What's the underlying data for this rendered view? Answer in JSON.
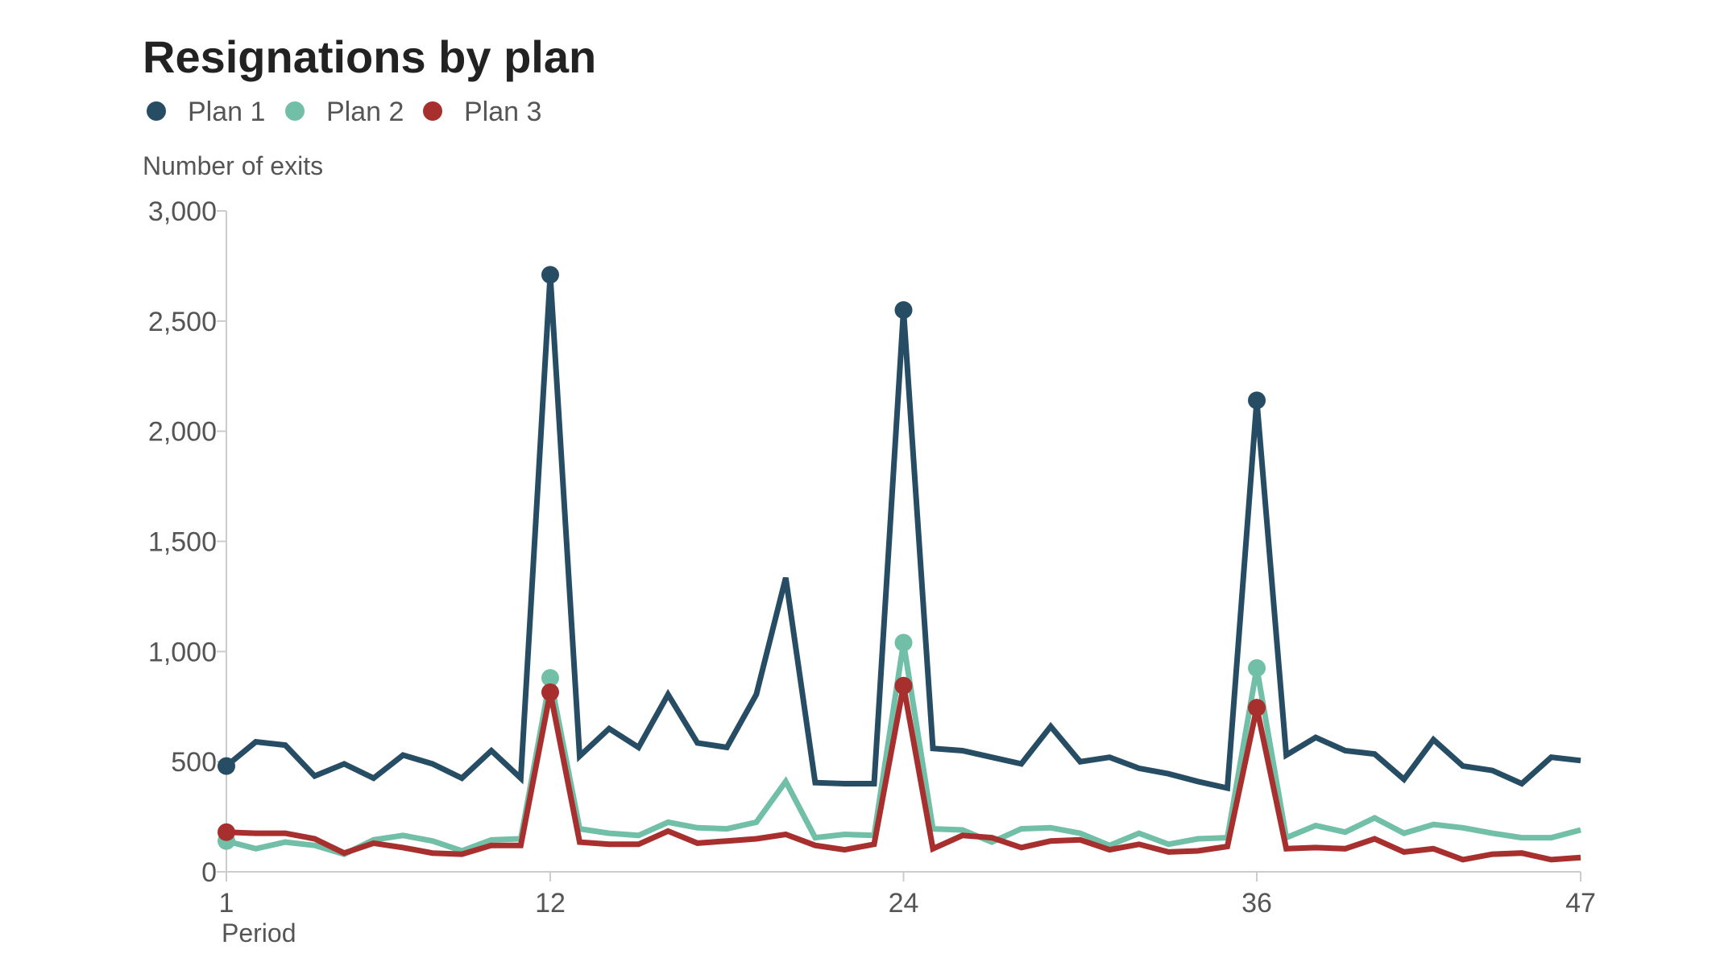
{
  "chart_data": {
    "type": "line",
    "title": "Resignations by plan",
    "ylabel": "Number of exits",
    "xlabel": "Period",
    "x": [
      1,
      2,
      3,
      4,
      5,
      6,
      7,
      8,
      9,
      10,
      11,
      12,
      13,
      14,
      15,
      16,
      17,
      18,
      19,
      20,
      21,
      22,
      23,
      24,
      25,
      26,
      27,
      28,
      29,
      30,
      31,
      32,
      33,
      34,
      35,
      36,
      37,
      38,
      39,
      40,
      41,
      42,
      43,
      44,
      45,
      46,
      47
    ],
    "xticks": [
      1,
      12,
      24,
      36,
      47
    ],
    "xlim": [
      1,
      47
    ],
    "ylim": [
      0,
      3000
    ],
    "yticks": [
      0,
      500,
      1000,
      1500,
      2000,
      2500,
      3000
    ],
    "ytick_labels": [
      "0",
      "500",
      "1,000",
      "1,500",
      "2,000",
      "2,500",
      "3,000"
    ],
    "grid": false,
    "legend_position": "top-left",
    "series": [
      {
        "name": "Plan 1",
        "color": "#264d64",
        "values": [
          480,
          590,
          575,
          435,
          490,
          425,
          530,
          490,
          425,
          550,
          425,
          2710,
          525,
          650,
          565,
          805,
          585,
          565,
          805,
          1335,
          405,
          400,
          400,
          2550,
          560,
          550,
          520,
          490,
          660,
          500,
          520,
          470,
          445,
          410,
          380,
          2140,
          530,
          610,
          550,
          535,
          420,
          600,
          480,
          460,
          400,
          520,
          505
        ],
        "markers": [
          1,
          12,
          24,
          36
        ]
      },
      {
        "name": "Plan 2",
        "color": "#72bfa7",
        "values": [
          140,
          105,
          135,
          120,
          80,
          145,
          165,
          140,
          95,
          145,
          150,
          880,
          195,
          175,
          165,
          225,
          200,
          195,
          225,
          410,
          155,
          170,
          165,
          1040,
          195,
          190,
          135,
          195,
          200,
          175,
          120,
          175,
          125,
          150,
          155,
          925,
          155,
          210,
          180,
          245,
          175,
          215,
          200,
          175,
          155,
          155,
          190
        ],
        "markers": [
          1,
          12,
          24,
          36
        ]
      },
      {
        "name": "Plan 3",
        "color": "#a7302f",
        "values": [
          180,
          175,
          175,
          150,
          85,
          130,
          110,
          85,
          80,
          120,
          120,
          815,
          135,
          125,
          125,
          185,
          130,
          140,
          150,
          170,
          120,
          100,
          125,
          845,
          105,
          165,
          155,
          110,
          140,
          145,
          100,
          125,
          90,
          95,
          115,
          745,
          105,
          110,
          105,
          150,
          90,
          105,
          55,
          80,
          85,
          55,
          65
        ],
        "markers": [
          1,
          12,
          24,
          36
        ]
      }
    ]
  }
}
